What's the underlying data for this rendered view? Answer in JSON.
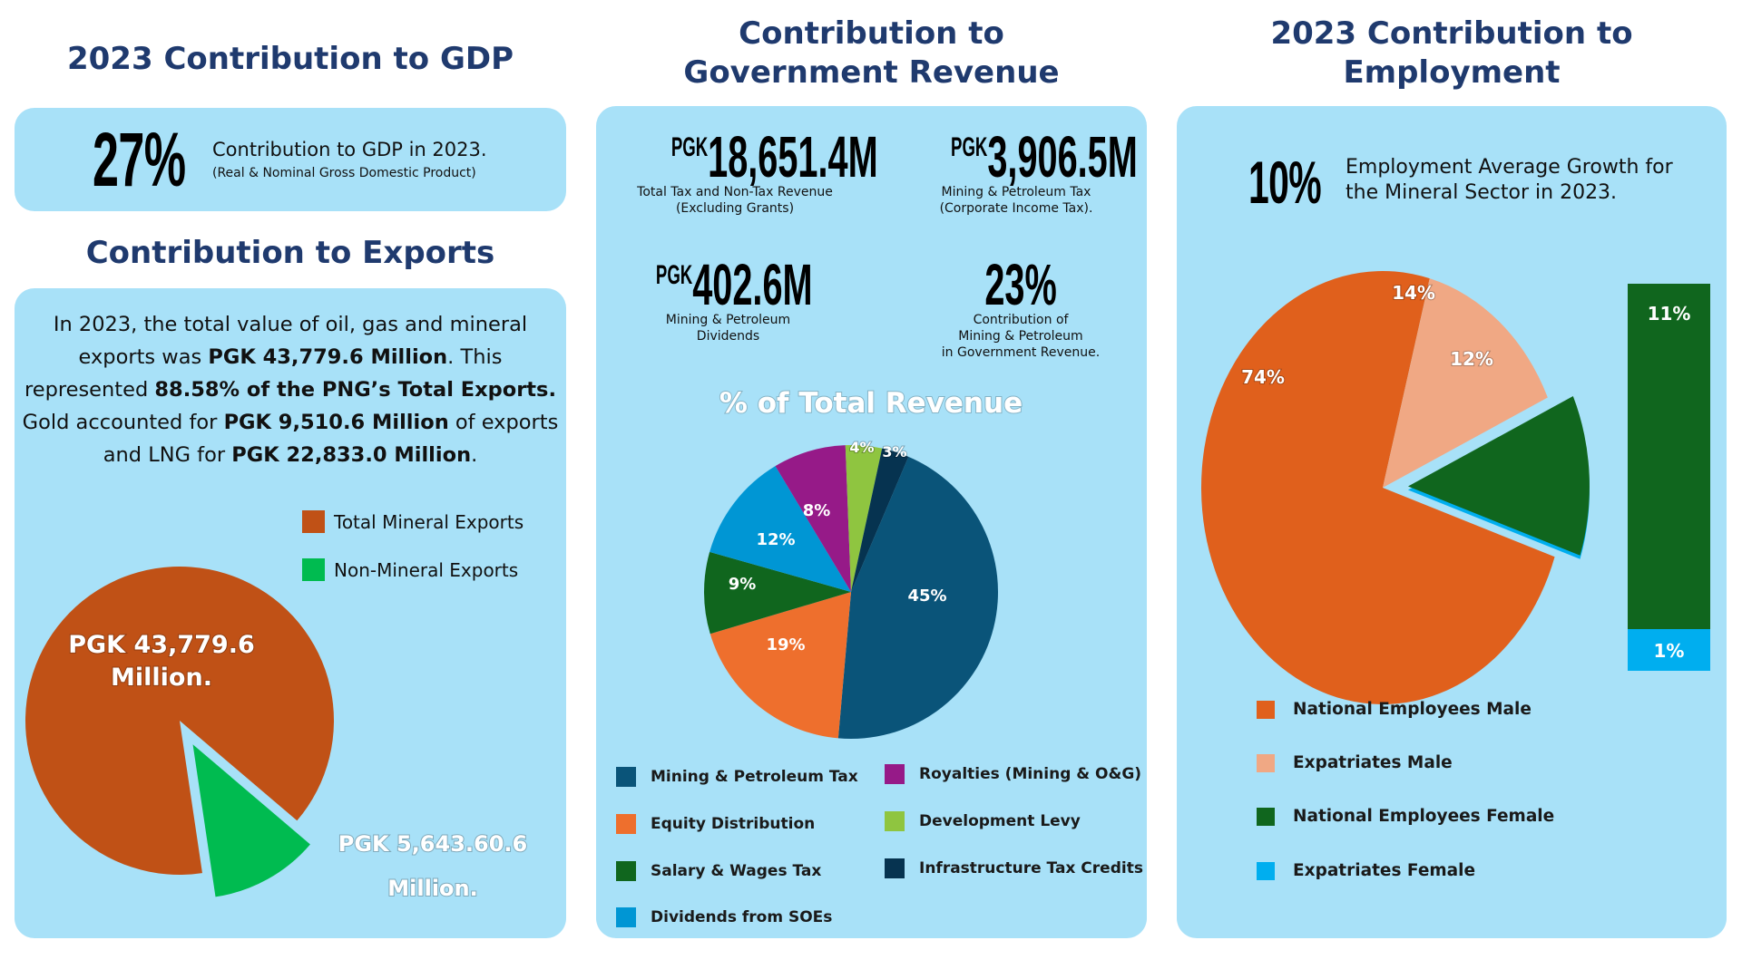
{
  "gdp": {
    "heading": "2023 Contribution to GDP",
    "value": "27%",
    "line1": "Contribution to GDP in 2023.",
    "line2": "(Real & Nominal Gross Domestic Product)"
  },
  "exports": {
    "heading": "Contribution to Exports",
    "text": [
      {
        "t": "In 2023, the total value of oil, gas and mineral exports was ",
        "b": false
      },
      {
        "t": "PGK 43,779.6 Million",
        "b": true
      },
      {
        "t": ". This represented ",
        "b": false
      },
      {
        "t": "88.58% of the PNG’s Total Exports.",
        "b": true
      },
      {
        "t": " Gold accounted for ",
        "b": false
      },
      {
        "t": "PGK 9,510.6 Million",
        "b": true
      },
      {
        "t": " of exports and LNG for ",
        "b": false
      },
      {
        "t": "PGK 22,833.0 Million",
        "b": true
      },
      {
        "t": ".",
        "b": false
      }
    ],
    "legend": [
      {
        "label": "Total Mineral Exports",
        "color": "#c05116"
      },
      {
        "label": "Non-Mineral Exports",
        "color": "#00bb50"
      }
    ]
  },
  "revenue": {
    "heading_line1": "Contribution to",
    "heading_line2": "Government Revenue",
    "stats": [
      {
        "prefix": "PGK",
        "value": "18,651.4M",
        "caption1": "Total Tax and Non-Tax Revenue",
        "caption2": "(Excluding Grants)",
        "caption3": ""
      },
      {
        "prefix": "PGK",
        "value": "3,906.5M",
        "caption1": "Mining & Petroleum Tax",
        "caption2": "(Corporate Income Tax).",
        "caption3": ""
      },
      {
        "prefix": "PGK",
        "value": "402.6M",
        "caption1": "Mining & Petroleum",
        "caption2": "Dividends",
        "caption3": ""
      },
      {
        "prefix": "",
        "value": "23%",
        "caption1": "Contribution of",
        "caption2": "Mining & Petroleum",
        "caption3": "in Government Revenue."
      }
    ]
  },
  "employment": {
    "heading_line1": "2023 Contribution to",
    "heading_line2": "Employment",
    "value": "10%",
    "line1": "Employment Average Growth for",
    "line2": "the Mineral Sector in 2023."
  },
  "chart_data": [
    {
      "type": "pie",
      "title": "Contribution to Exports",
      "categories": [
        "Total Mineral Exports",
        "Non-Mineral Exports"
      ],
      "values": [
        43779.6,
        5643.6
      ],
      "labels": [
        "PGK 43,779.6 Million.",
        "PGK 5,643.60.6 Million."
      ],
      "label_lines": [
        [
          "PGK 43,779.6",
          "Million."
        ],
        [
          "PGK 5,643.60.6",
          "Million."
        ]
      ],
      "colors": [
        "#c05116",
        "#00bb50"
      ],
      "exploded": [
        false,
        true
      ],
      "legend": "top-right"
    },
    {
      "type": "pie",
      "title": "% of Total Revenue",
      "categories": [
        "Mining & Petroleum Tax",
        "Equity Distribution",
        "Salary & Wages Tax",
        "Dividends from SOEs",
        "Royalties (Mining & O&G)",
        "Development Levy",
        "Infrastructure Tax Credits"
      ],
      "values": [
        45,
        19,
        9,
        12,
        8,
        4,
        3
      ],
      "labels": [
        "45%",
        "19%",
        "9%",
        "12%",
        "8%",
        "4%",
        "3%"
      ],
      "colors": [
        "#0a5479",
        "#ee6f2d",
        "#10661e",
        "#0096d4",
        "#961a88",
        "#8fc540",
        "#063350"
      ],
      "unit": "%",
      "legend": "bottom"
    },
    {
      "type": "pie",
      "title": "2023 Contribution to Employment",
      "categories": [
        "National Employees Male",
        "Expatriates Male",
        "National Employees Female",
        "Expatriates Female"
      ],
      "values": [
        74,
        14,
        12,
        0
      ],
      "labels": [
        "74%",
        "14%",
        "12%",
        ""
      ],
      "colors": [
        "#e0601c",
        "#f0a884",
        "#10661e",
        "#00aeef"
      ],
      "exploded": [
        false,
        false,
        true,
        false
      ],
      "unit": "%",
      "legend": "bottom",
      "breakdown_bar": {
        "of": "National Employees Female + Expatriates Female",
        "segments": [
          {
            "name": "National Employees Female",
            "value": 11,
            "label": "11%",
            "color": "#10661e"
          },
          {
            "name": "Expatriates Female",
            "value": 1,
            "label": "1%",
            "color": "#00aeef"
          }
        ]
      }
    }
  ]
}
